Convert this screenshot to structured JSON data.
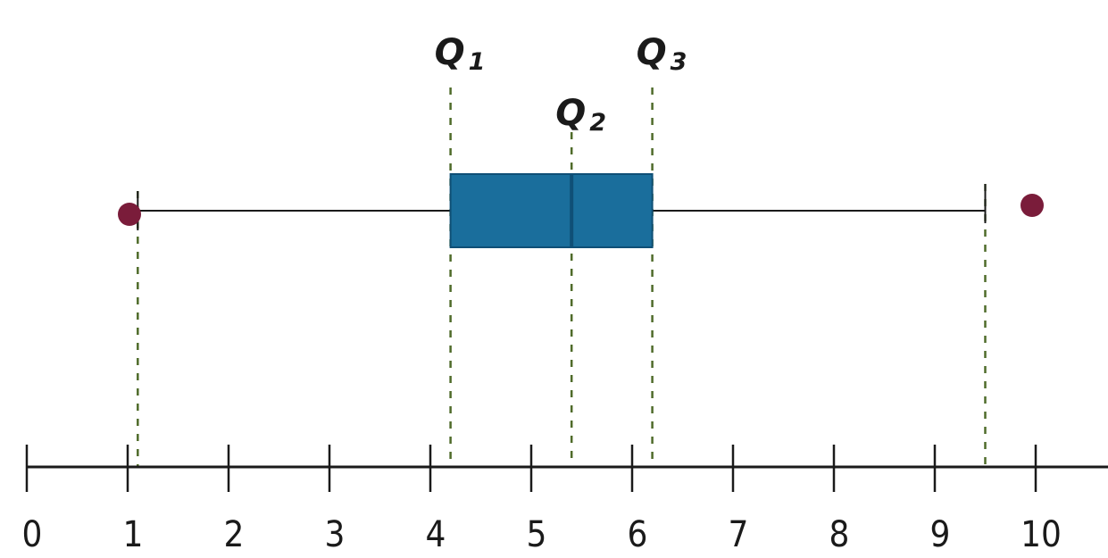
{
  "chart_data": {
    "type": "boxplot",
    "title": "",
    "xlabel": "",
    "ylabel": "",
    "xlim": [
      0,
      10.8
    ],
    "ticks": [
      0,
      1,
      2,
      3,
      4,
      5,
      6,
      7,
      8,
      9,
      10
    ],
    "tick_labels": [
      "0",
      "1",
      "2",
      "3",
      "4",
      "5",
      "6",
      "7",
      "8",
      "9",
      "10"
    ],
    "whisker_low": 1.1,
    "q1": 4.2,
    "median": 5.4,
    "q3": 6.2,
    "whisker_high": 9.5,
    "outliers": [
      1.0,
      10.0
    ],
    "quartile_labels": [
      {
        "letter": "Q",
        "sub": "1",
        "value": 4.2
      },
      {
        "letter": "Q",
        "sub": "2",
        "value": 5.4
      },
      {
        "letter": "Q",
        "sub": "3",
        "value": 6.2
      }
    ],
    "colors": {
      "box": "#1a6e9c",
      "box_edge": "#0f4f76",
      "outlier": "#7a1c3a",
      "guide": "#4f6b2a",
      "axis": "#1a1a1a"
    }
  }
}
